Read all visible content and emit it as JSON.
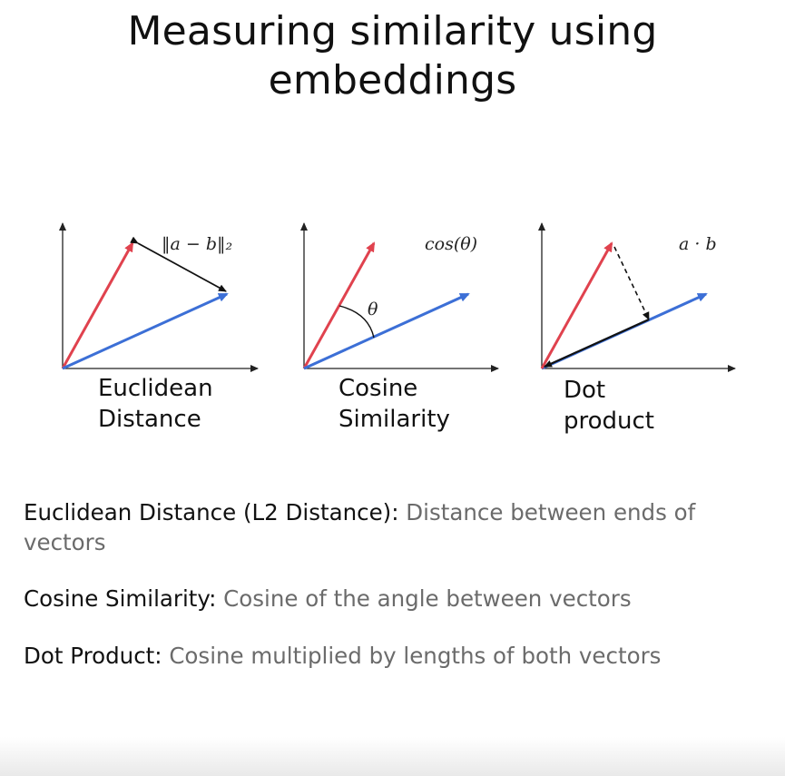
{
  "title": {
    "line1": "Measuring similarity using",
    "line2": "embeddings"
  },
  "diagrams": [
    {
      "label_line1": "Euclidean",
      "label_line2": "Distance",
      "formula": "‖a − b‖₂"
    },
    {
      "label_line1": "Cosine",
      "label_line2": "Similarity",
      "formula": "cos(θ)",
      "angle_label": "θ"
    },
    {
      "label_line1": "Dot",
      "label_line2": "product",
      "formula": "a · b"
    }
  ],
  "definitions": [
    {
      "term": "Euclidean Distance (L2 Distance):",
      "description": "Distance between ends of vectors"
    },
    {
      "term": "Cosine Similarity:",
      "description": "Cosine of the angle between vectors"
    },
    {
      "term": "Dot Product:",
      "description": "Cosine multiplied by lengths of both vectors"
    }
  ],
  "colors": {
    "vector_a": "#e0424e",
    "vector_b": "#3c6fd6",
    "axis": "#222222",
    "description_text": "#6b6b6b"
  }
}
